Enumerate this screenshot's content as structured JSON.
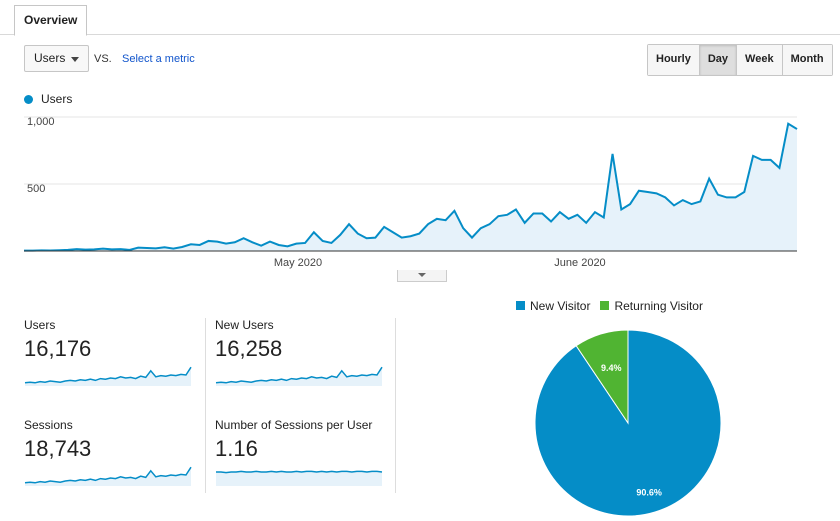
{
  "tab": {
    "label": "Overview"
  },
  "toolbar": {
    "metric": "Users",
    "vs": "VS.",
    "select_metric": "Select a metric",
    "ranges": [
      "Hourly",
      "Day",
      "Week",
      "Month"
    ],
    "active_range": "Day"
  },
  "chart_data": [
    {
      "type": "area",
      "series": [
        {
          "name": "Users",
          "color": "#058dc7",
          "values": [
            3,
            3,
            5,
            4,
            6,
            8,
            14,
            10,
            12,
            18,
            12,
            14,
            8,
            25,
            22,
            20,
            28,
            18,
            30,
            50,
            45,
            75,
            70,
            55,
            65,
            95,
            65,
            40,
            70,
            45,
            35,
            55,
            60,
            140,
            75,
            60,
            120,
            200,
            130,
            95,
            100,
            180,
            140,
            100,
            110,
            130,
            200,
            240,
            230,
            300,
            170,
            100,
            170,
            200,
            260,
            270,
            310,
            210,
            280,
            280,
            220,
            290,
            240,
            270,
            210,
            290,
            250,
            725,
            310,
            350,
            450,
            440,
            430,
            400,
            340,
            380,
            350,
            370,
            540,
            420,
            400,
            400,
            440,
            710,
            680,
            680,
            620,
            950,
            910
          ]
        }
      ],
      "x_ticks": [
        "May 2020",
        "June 2020"
      ],
      "y_ticks": [
        "500",
        "1,000"
      ],
      "ylim": [
        0,
        1000
      ]
    },
    {
      "type": "pie",
      "slices": [
        {
          "name": "New Visitor",
          "value": 90.6,
          "label": "90.6%",
          "color": "#058dc7"
        },
        {
          "name": "Returning Visitor",
          "value": 9.4,
          "label": "9.4%",
          "color": "#50b432"
        }
      ]
    }
  ],
  "scorecards": [
    {
      "label": "Users",
      "value": "16,176",
      "spark": [
        2,
        3,
        2,
        4,
        3,
        5,
        4,
        3,
        5,
        6,
        5,
        7,
        6,
        8,
        6,
        9,
        8,
        10,
        9,
        12,
        10,
        11,
        9,
        13,
        11,
        22,
        12,
        14,
        13,
        15,
        14,
        16,
        15,
        28
      ]
    },
    {
      "label": "New Users",
      "value": "16,258",
      "spark": [
        2,
        3,
        2,
        4,
        3,
        5,
        4,
        3,
        5,
        6,
        5,
        7,
        6,
        8,
        6,
        9,
        8,
        10,
        9,
        12,
        10,
        11,
        9,
        13,
        11,
        22,
        12,
        14,
        13,
        15,
        14,
        16,
        15,
        28
      ]
    },
    {
      "label": "Sessions",
      "value": "18,743",
      "spark": [
        2,
        3,
        2,
        4,
        3,
        5,
        4,
        3,
        5,
        6,
        5,
        7,
        6,
        8,
        6,
        9,
        8,
        10,
        9,
        12,
        10,
        11,
        9,
        13,
        11,
        22,
        12,
        14,
        13,
        15,
        14,
        16,
        15,
        28
      ]
    },
    {
      "label": "Number of Sessions per User",
      "value": "1.16",
      "spark": [
        20,
        20,
        19,
        20,
        20,
        21,
        20,
        20,
        21,
        20,
        20,
        21,
        20,
        21,
        20,
        20,
        21,
        20,
        21,
        21,
        20,
        21,
        20,
        21,
        20,
        21,
        21,
        20,
        21,
        21,
        20,
        21,
        21,
        20
      ]
    }
  ]
}
